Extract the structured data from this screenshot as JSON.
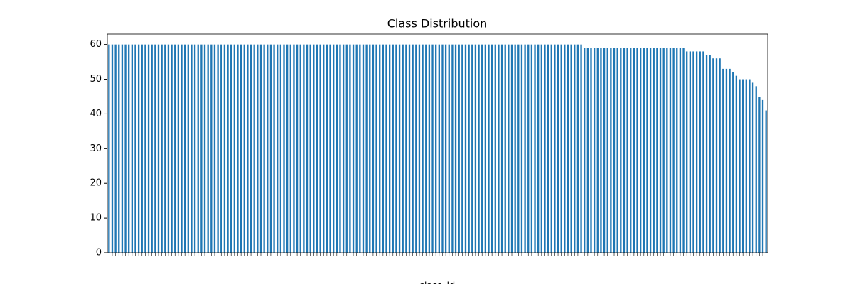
{
  "chart_data": {
    "type": "bar",
    "title": "Class Distribution",
    "xlabel": "class_id",
    "categories": [
      null,
      null,
      null,
      null,
      null,
      null,
      null,
      null,
      null,
      null,
      null,
      null,
      null,
      null,
      null,
      null,
      null,
      null,
      null,
      null,
      null,
      null,
      null,
      null,
      null,
      null,
      null,
      null,
      null,
      null,
      null,
      null,
      null,
      null,
      null,
      null,
      null,
      null,
      null,
      null,
      null,
      null,
      null,
      null,
      null,
      null,
      null,
      null,
      null,
      null,
      null,
      null,
      null,
      null,
      null,
      null,
      null,
      null,
      null,
      null,
      null,
      null,
      null,
      null,
      null,
      null,
      null,
      null,
      null,
      null,
      null,
      null,
      null,
      null,
      null,
      null,
      null,
      null,
      null,
      null,
      null,
      null,
      null,
      null,
      null,
      null,
      null,
      null,
      null,
      null,
      null,
      null,
      null,
      null,
      null,
      null,
      null,
      null,
      null,
      null,
      null,
      null,
      null,
      null,
      null,
      null,
      null,
      null,
      null,
      null,
      null,
      null,
      null,
      null,
      null,
      null,
      null,
      null,
      null,
      null,
      null,
      null,
      null,
      null,
      null,
      null,
      null,
      null,
      null,
      null,
      null,
      null,
      null,
      null,
      null,
      null,
      null,
      null,
      null,
      null,
      null,
      null,
      null,
      null,
      null,
      null,
      null,
      null,
      null,
      null,
      null,
      null,
      null,
      null,
      null,
      null,
      null,
      null,
      null,
      null,
      null,
      null,
      null,
      null,
      null,
      null,
      null,
      null,
      null,
      null,
      null,
      null,
      null,
      null,
      null,
      null,
      null,
      null,
      null,
      null,
      null,
      null,
      null,
      null,
      null,
      null,
      null,
      null,
      null,
      null,
      null,
      null,
      null,
      null,
      null,
      null,
      null,
      null,
      null,
      null
    ],
    "values": [
      60,
      60,
      60,
      60,
      60,
      60,
      60,
      60,
      60,
      60,
      60,
      60,
      60,
      60,
      60,
      60,
      60,
      60,
      60,
      60,
      60,
      60,
      60,
      60,
      60,
      60,
      60,
      60,
      60,
      60,
      60,
      60,
      60,
      60,
      60,
      60,
      60,
      60,
      60,
      60,
      60,
      60,
      60,
      60,
      60,
      60,
      60,
      60,
      60,
      60,
      60,
      60,
      60,
      60,
      60,
      60,
      60,
      60,
      60,
      60,
      60,
      60,
      60,
      60,
      60,
      60,
      60,
      60,
      60,
      60,
      60,
      60,
      60,
      60,
      60,
      60,
      60,
      60,
      60,
      60,
      60,
      60,
      60,
      60,
      60,
      60,
      60,
      60,
      60,
      60,
      60,
      60,
      60,
      60,
      60,
      60,
      60,
      60,
      60,
      60,
      60,
      60,
      60,
      60,
      60,
      60,
      60,
      60,
      60,
      60,
      60,
      60,
      60,
      60,
      60,
      60,
      60,
      60,
      60,
      60,
      60,
      60,
      60,
      60,
      60,
      60,
      60,
      60,
      60,
      60,
      60,
      60,
      60,
      60,
      60,
      60,
      60,
      60,
      60,
      60,
      60,
      60,
      60,
      60,
      59,
      59,
      59,
      59,
      59,
      59,
      59,
      59,
      59,
      59,
      59,
      59,
      59,
      59,
      59,
      59,
      59,
      59,
      59,
      59,
      59,
      59,
      59,
      59,
      59,
      59,
      59,
      59,
      59,
      59,
      59,
      58,
      58,
      58,
      58,
      58,
      58,
      57,
      57,
      56,
      56,
      56,
      53,
      53,
      53,
      52,
      51,
      50,
      50,
      50,
      50,
      49,
      48,
      45,
      44,
      41
    ],
    "color": "#1f77b4",
    "ylim": [
      0,
      63
    ],
    "yticks": [
      0,
      10,
      20,
      30,
      40,
      50,
      60
    ]
  }
}
